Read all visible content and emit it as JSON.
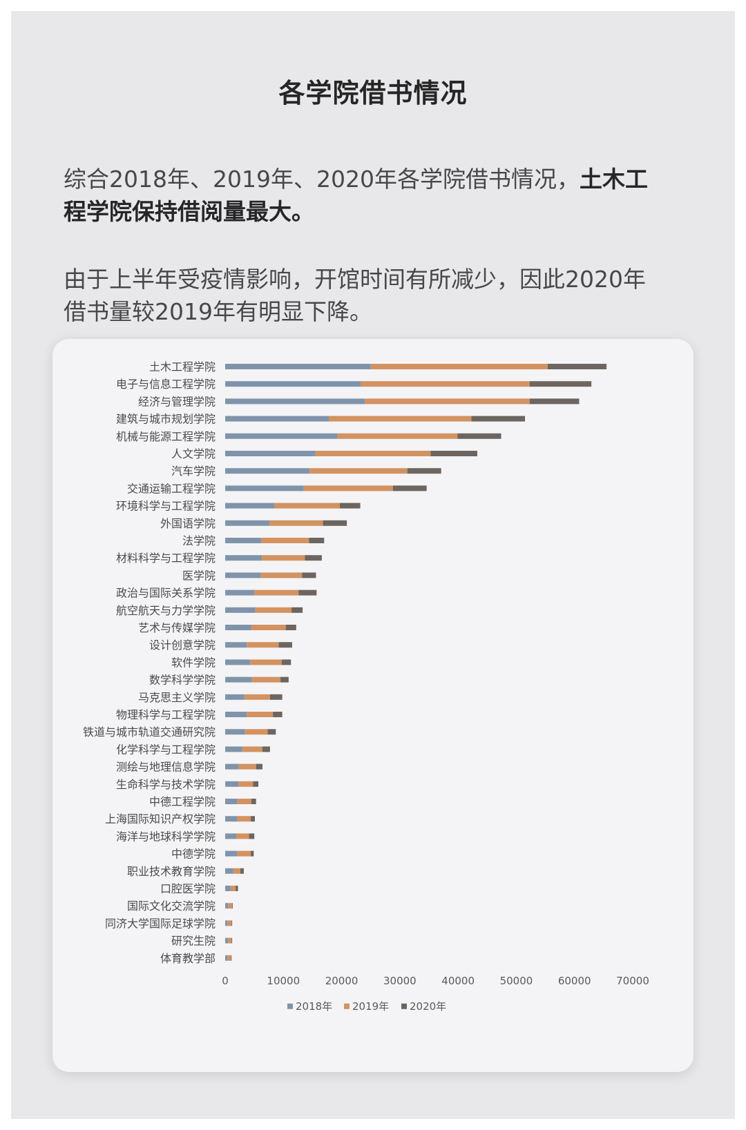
{
  "page": {
    "title": "各学院借书情况",
    "paragraph1": [
      {
        "text": "综合2018年、2019年、2020年各学院借书情况，",
        "bold": false
      },
      {
        "text": "土木工程学院保持借阅量最大。",
        "bold": true
      }
    ],
    "paragraph2": "由于上半年受疫情影响，开馆时间有所减少，因此2020年借书量较2019年有明显下降。"
  },
  "chart_data": {
    "type": "bar",
    "orientation": "horizontal",
    "stacked": true,
    "categories": [
      "土木工程学院",
      "电子与信息工程学院",
      "经济与管理学院",
      "建筑与城市规划学院",
      "机械与能源工程学院",
      "人文学院",
      "汽车学院",
      "交通运输工程学院",
      "环境科学与工程学院",
      "外国语学院",
      "法学院",
      "材料科学与工程学院",
      "医学院",
      "政治与国际关系学院",
      "航空航天与力学学院",
      "艺术与传媒学院",
      "设计创意学院",
      "软件学院",
      "数学科学学院",
      "马克思主义学院",
      "物理科学与工程学院",
      "铁道与城市轨道交通研究院",
      "化学科学与工程学院",
      "测绘与地理信息学院",
      "生命科学与技术学院",
      "中德工程学院",
      "上海国际知识产权学院",
      "海洋与地球科学学院",
      "中德学院",
      "职业技术教育学院",
      "口腔医学院",
      "国际文化交流学院",
      "同济大学国际足球学院",
      "研究生院",
      "体育教学部"
    ],
    "series": [
      {
        "name": "2018年",
        "color": "#7f94ab",
        "values": [
          25000,
          23300,
          24000,
          17800,
          19300,
          15500,
          14500,
          13500,
          8500,
          7600,
          6200,
          6300,
          6100,
          5000,
          5200,
          4500,
          3700,
          4300,
          4600,
          3300,
          3700,
          3400,
          2900,
          2300,
          2300,
          2100,
          2100,
          1900,
          2100,
          1400,
          900,
          500,
          400,
          500,
          400
        ]
      },
      {
        "name": "2019年",
        "color": "#d39261",
        "values": [
          30400,
          29000,
          28300,
          24500,
          20600,
          19800,
          16800,
          15300,
          11200,
          9200,
          8200,
          7400,
          7100,
          7600,
          6200,
          5900,
          5500,
          5400,
          4900,
          4400,
          4500,
          3900,
          3500,
          3000,
          2500,
          2400,
          2300,
          2200,
          2300,
          1200,
          900,
          700,
          700,
          600,
          600
        ]
      },
      {
        "name": "2020年",
        "color": "#6d6560",
        "values": [
          10100,
          10600,
          8500,
          9200,
          7500,
          8000,
          5800,
          5800,
          3500,
          4100,
          2600,
          2900,
          2400,
          3100,
          1900,
          1800,
          2300,
          1600,
          1400,
          2100,
          1600,
          1400,
          1300,
          1100,
          900,
          800,
          700,
          900,
          500,
          600,
          400,
          100,
          100,
          100,
          100
        ]
      }
    ],
    "xlim": [
      0,
      70000
    ],
    "xticks": [
      0,
      10000,
      20000,
      30000,
      40000,
      50000,
      60000,
      70000
    ],
    "legend_position": "bottom",
    "grid": false
  }
}
